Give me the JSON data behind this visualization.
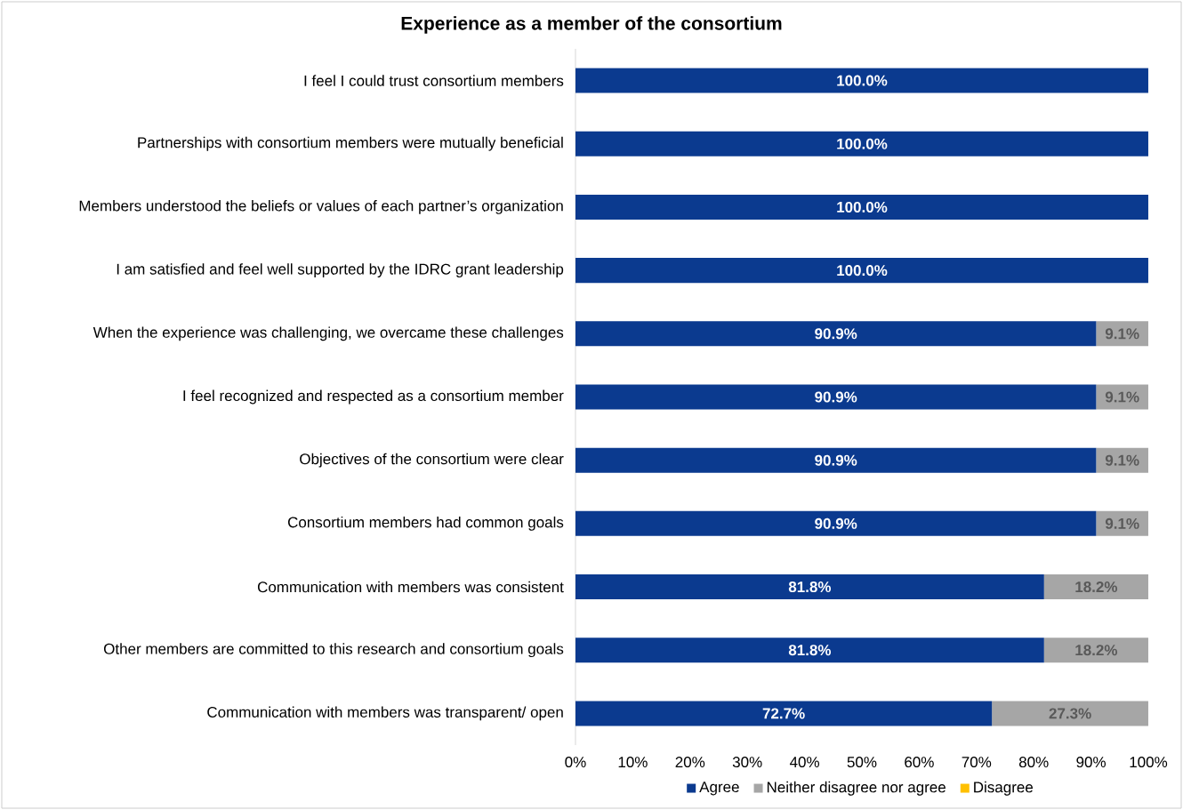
{
  "chart_data": {
    "type": "bar",
    "orientation": "horizontal",
    "stacked": true,
    "title": "Experience as a member of the consortium",
    "categories": [
      "I feel I could trust consortium members",
      "Partnerships with consortium members were mutually beneficial",
      "Members understood the beliefs or values of each partner’s organization",
      "I am satisfied and feel well supported by the IDRC grant leadership",
      "When the experience was challenging, we overcame these challenges",
      "I feel recognized and respected as a consortium member",
      "Objectives of the consortium were clear",
      "Consortium members had common goals",
      "Communication with members was consistent",
      "Other members are committed to this research and consortium goals",
      "Communication with  members was transparent/ open"
    ],
    "series": [
      {
        "name": "Agree",
        "color": "#0b3a8f",
        "values": [
          100.0,
          100.0,
          100.0,
          100.0,
          90.9,
          90.9,
          90.9,
          90.9,
          81.8,
          81.8,
          72.7
        ],
        "value_labels": [
          "100.0%",
          "100.0%",
          "100.0%",
          "100.0%",
          "90.9%",
          "90.9%",
          "90.9%",
          "90.9%",
          "81.8%",
          "81.8%",
          "72.7%"
        ]
      },
      {
        "name": "Neither disagree nor agree",
        "color": "#a6a6a6",
        "values": [
          0,
          0,
          0,
          0,
          9.1,
          9.1,
          9.1,
          9.1,
          18.2,
          18.2,
          27.3
        ],
        "value_labels": [
          null,
          null,
          null,
          null,
          "9.1%",
          "9.1%",
          "9.1%",
          "9.1%",
          "18.2%",
          "18.2%",
          "27.3%"
        ]
      },
      {
        "name": "Disagree",
        "color": "#ffc000",
        "values": [
          0,
          0,
          0,
          0,
          0,
          0,
          0,
          0,
          0,
          0,
          0
        ]
      }
    ],
    "xlim": [
      0,
      100
    ],
    "xticks": [
      {
        "value": 0,
        "label": "0%"
      },
      {
        "value": 10,
        "label": "10%"
      },
      {
        "value": 20,
        "label": "20%"
      },
      {
        "value": 30,
        "label": "30%"
      },
      {
        "value": 40,
        "label": "40%"
      },
      {
        "value": 50,
        "label": "50%"
      },
      {
        "value": 60,
        "label": "60%"
      },
      {
        "value": 70,
        "label": "70%"
      },
      {
        "value": 80,
        "label": "80%"
      },
      {
        "value": 90,
        "label": "90%"
      },
      {
        "value": 100,
        "label": "100%"
      }
    ],
    "legend": "bottom"
  }
}
